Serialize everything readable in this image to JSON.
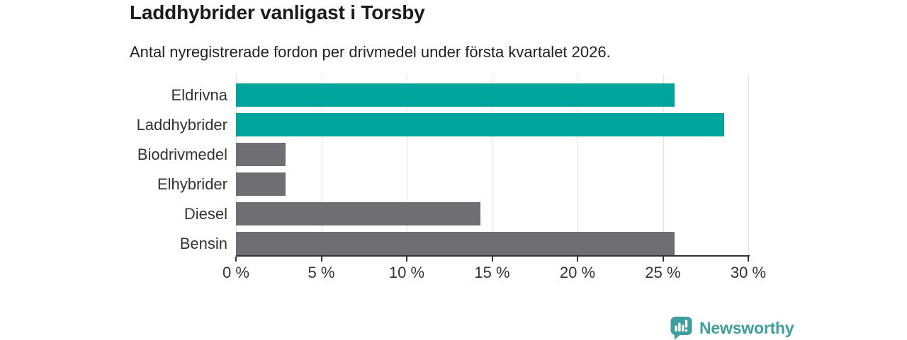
{
  "header": {
    "title": "Laddhybrider vanligast i Torsby",
    "subtitle": "Antal nyregistrerade fordon per drivmedel under första kvartalet 2026."
  },
  "chart_data": {
    "type": "bar",
    "orientation": "horizontal",
    "title": "Laddhybrider vanligast i Torsby",
    "subtitle": "Antal nyregistrerade fordon per drivmedel under första kvartalet 2026.",
    "categories": [
      "Eldrivna",
      "Laddhybrider",
      "Biodrivmedel",
      "Elhybrider",
      "Diesel",
      "Bensin"
    ],
    "values": [
      25.7,
      28.6,
      2.9,
      2.9,
      14.3,
      25.7
    ],
    "unit": "%",
    "xlabel": "",
    "ylabel": "",
    "xlim": [
      0,
      30
    ],
    "x_ticks": [
      0,
      5,
      10,
      15,
      20,
      25,
      30
    ],
    "x_tick_labels": [
      "0 %",
      "5 %",
      "10 %",
      "15 %",
      "20 %",
      "25 %",
      "30 %"
    ],
    "bar_colors": [
      "#00a49a",
      "#00a49a",
      "#6e6e73",
      "#6e6e73",
      "#6e6e73",
      "#6e6e73"
    ],
    "colors": {
      "highlight": "#00a49a",
      "default": "#6e6e73",
      "grid": "#e2e2e2",
      "axis": "#333333"
    },
    "grid": true,
    "legend": false
  },
  "footer": {
    "brand": "Newsworthy",
    "brand_color": "#3d9e9d"
  }
}
